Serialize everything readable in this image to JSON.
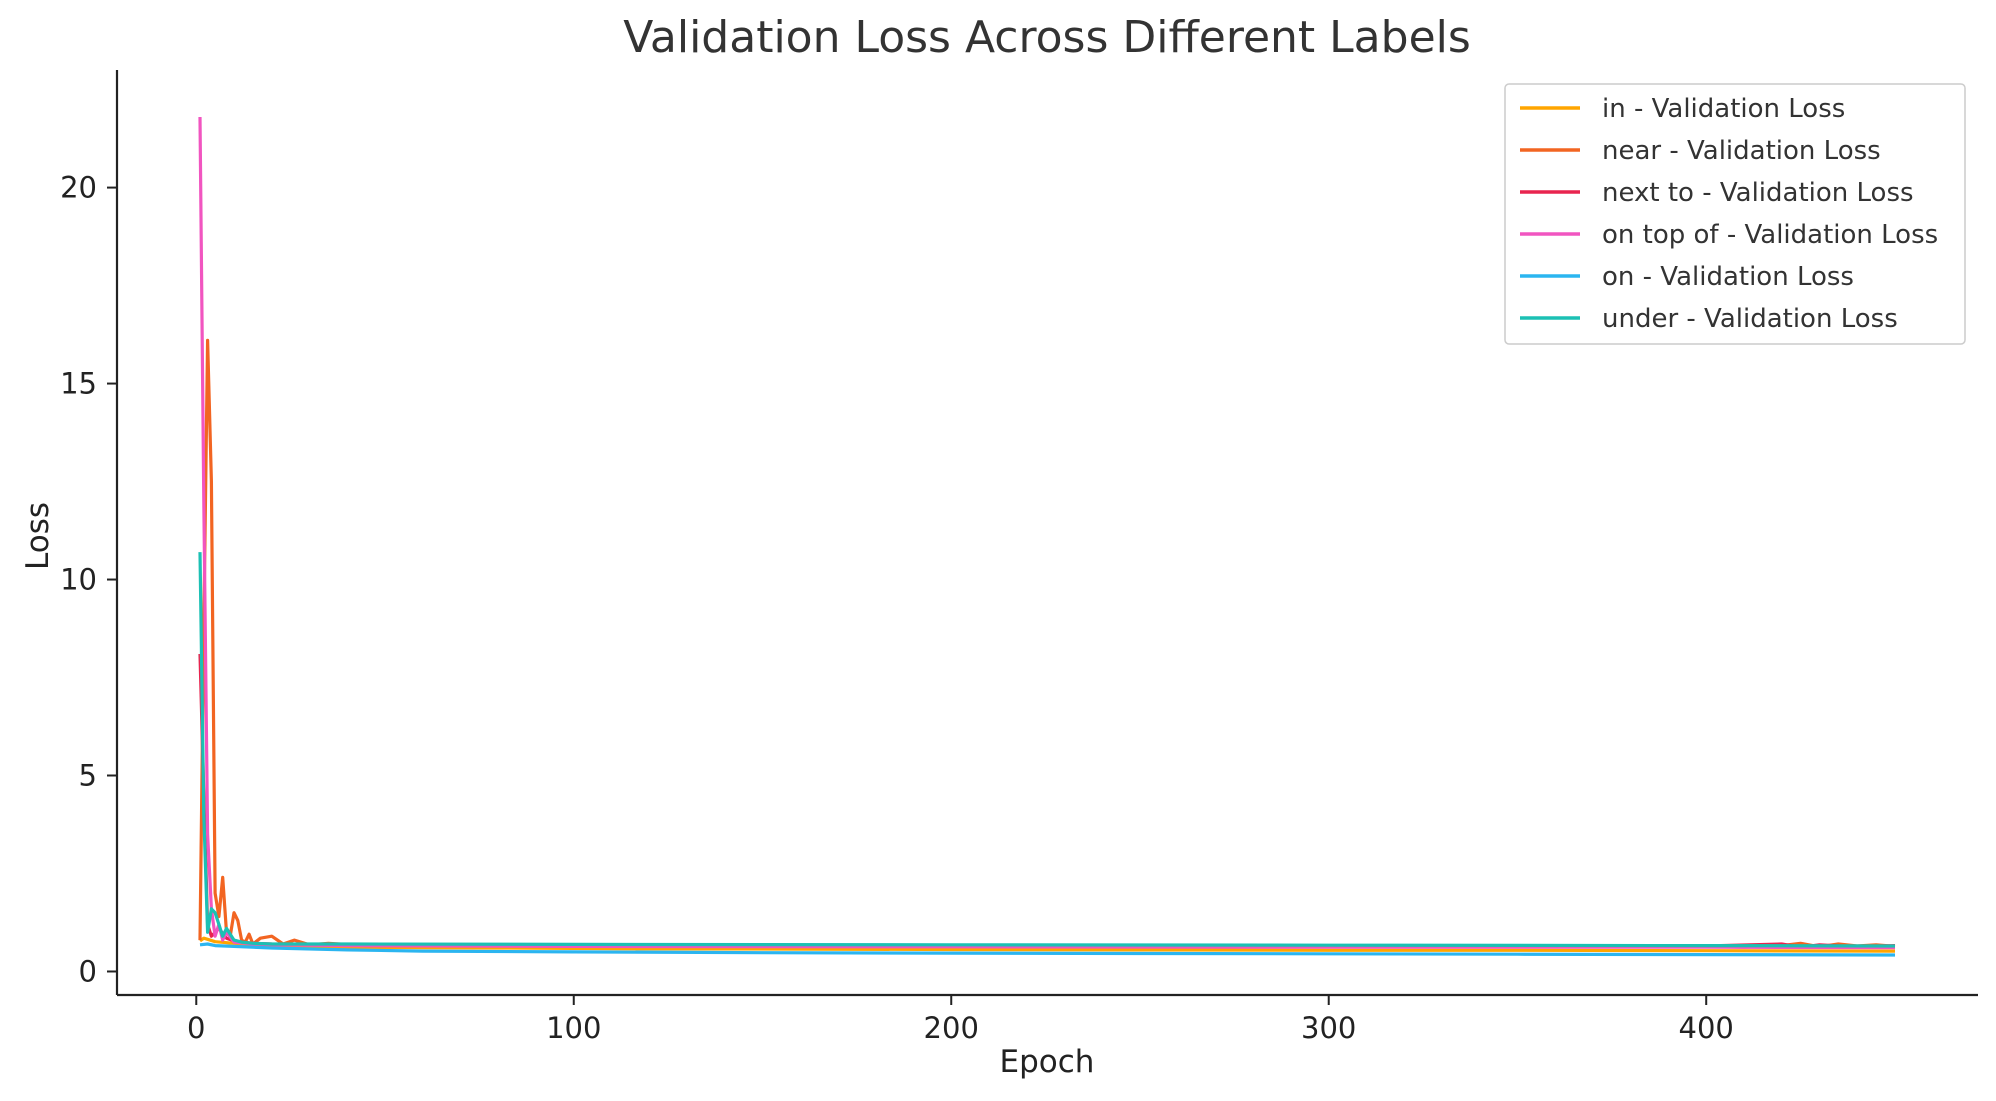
{
  "chart_data": {
    "type": "line",
    "title": "Validation Loss Across Different Labels",
    "xlabel": "Epoch",
    "ylabel": "Loss",
    "xlim": [
      -21,
      472
    ],
    "ylim": [
      -0.6,
      23.0
    ],
    "xticks": [
      0,
      100,
      200,
      300,
      400
    ],
    "yticks": [
      0,
      5,
      10,
      15,
      20
    ],
    "grid": false,
    "legend": "top-right",
    "series": [
      {
        "name": "in - Validation Loss",
        "color": "#FFA500",
        "points": [
          [
            1,
            0.78
          ],
          [
            2,
            0.85
          ],
          [
            3,
            0.82
          ],
          [
            5,
            0.76
          ],
          [
            10,
            0.72
          ],
          [
            20,
            0.66
          ],
          [
            40,
            0.62
          ],
          [
            80,
            0.6
          ],
          [
            120,
            0.58
          ],
          [
            160,
            0.57
          ],
          [
            200,
            0.56
          ],
          [
            250,
            0.55
          ],
          [
            300,
            0.54
          ],
          [
            350,
            0.54
          ],
          [
            400,
            0.53
          ],
          [
            450,
            0.52
          ]
        ]
      },
      {
        "name": "near - Validation Loss",
        "color": "#F26522",
        "points": [
          [
            1,
            0.8
          ],
          [
            2,
            8.8
          ],
          [
            3,
            16.1
          ],
          [
            4,
            12.5
          ],
          [
            5,
            2.0
          ],
          [
            6,
            1.4
          ],
          [
            7,
            2.4
          ],
          [
            8,
            1.0
          ],
          [
            9,
            0.9
          ],
          [
            10,
            1.5
          ],
          [
            11,
            1.3
          ],
          [
            12,
            0.8
          ],
          [
            13,
            0.75
          ],
          [
            14,
            0.95
          ],
          [
            15,
            0.7
          ],
          [
            17,
            0.85
          ],
          [
            20,
            0.9
          ],
          [
            23,
            0.7
          ],
          [
            26,
            0.8
          ],
          [
            30,
            0.68
          ],
          [
            35,
            0.72
          ],
          [
            45,
            0.66
          ],
          [
            60,
            0.66
          ],
          [
            100,
            0.65
          ],
          [
            150,
            0.65
          ],
          [
            200,
            0.65
          ],
          [
            250,
            0.64
          ],
          [
            300,
            0.63
          ],
          [
            350,
            0.63
          ],
          [
            400,
            0.64
          ],
          [
            410,
            0.62
          ],
          [
            420,
            0.66
          ],
          [
            425,
            0.72
          ],
          [
            430,
            0.63
          ],
          [
            435,
            0.7
          ],
          [
            440,
            0.65
          ],
          [
            445,
            0.68
          ],
          [
            450,
            0.64
          ]
        ]
      },
      {
        "name": "next to - Validation Loss",
        "color": "#E8244F",
        "points": [
          [
            1,
            8.1
          ],
          [
            2,
            4.5
          ],
          [
            3,
            1.2
          ],
          [
            4,
            0.9
          ],
          [
            6,
            1.1
          ],
          [
            8,
            0.85
          ],
          [
            10,
            0.78
          ],
          [
            15,
            0.72
          ],
          [
            20,
            0.7
          ],
          [
            40,
            0.68
          ],
          [
            100,
            0.66
          ],
          [
            200,
            0.65
          ],
          [
            300,
            0.64
          ],
          [
            380,
            0.64
          ],
          [
            400,
            0.65
          ],
          [
            420,
            0.7
          ],
          [
            425,
            0.62
          ],
          [
            430,
            0.68
          ],
          [
            440,
            0.63
          ],
          [
            450,
            0.66
          ]
        ]
      },
      {
        "name": "on top of - Validation Loss",
        "color": "#F155C0",
        "points": [
          [
            1,
            21.8
          ],
          [
            2,
            12.0
          ],
          [
            3,
            3.5
          ],
          [
            4,
            1.6
          ],
          [
            5,
            0.9
          ],
          [
            6,
            1.2
          ],
          [
            7,
            0.8
          ],
          [
            8,
            1.0
          ],
          [
            10,
            0.75
          ],
          [
            15,
            0.7
          ],
          [
            20,
            0.68
          ],
          [
            40,
            0.66
          ],
          [
            100,
            0.64
          ],
          [
            200,
            0.63
          ],
          [
            300,
            0.62
          ],
          [
            400,
            0.62
          ],
          [
            450,
            0.61
          ]
        ]
      },
      {
        "name": "on - Validation Loss",
        "color": "#2BB5F0",
        "points": [
          [
            1,
            0.68
          ],
          [
            3,
            0.7
          ],
          [
            5,
            0.66
          ],
          [
            10,
            0.64
          ],
          [
            20,
            0.6
          ],
          [
            40,
            0.55
          ],
          [
            60,
            0.52
          ],
          [
            100,
            0.5
          ],
          [
            150,
            0.48
          ],
          [
            200,
            0.47
          ],
          [
            250,
            0.46
          ],
          [
            300,
            0.45
          ],
          [
            350,
            0.44
          ],
          [
            400,
            0.43
          ],
          [
            450,
            0.42
          ]
        ]
      },
      {
        "name": "under - Validation Loss",
        "color": "#1CC0B4",
        "points": [
          [
            1,
            10.7
          ],
          [
            2,
            4.0
          ],
          [
            3,
            1.0
          ],
          [
            4,
            1.6
          ],
          [
            5,
            1.5
          ],
          [
            6,
            1.2
          ],
          [
            7,
            0.9
          ],
          [
            8,
            1.1
          ],
          [
            10,
            0.8
          ],
          [
            12,
            0.75
          ],
          [
            15,
            0.72
          ],
          [
            20,
            0.7
          ],
          [
            40,
            0.7
          ],
          [
            100,
            0.69
          ],
          [
            200,
            0.68
          ],
          [
            300,
            0.67
          ],
          [
            400,
            0.66
          ],
          [
            450,
            0.65
          ]
        ]
      }
    ]
  }
}
